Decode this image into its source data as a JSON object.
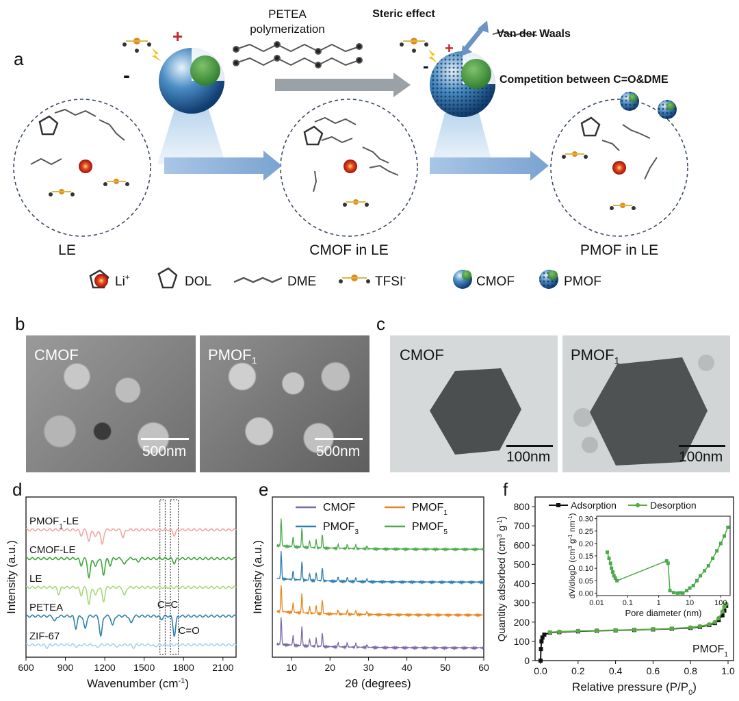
{
  "panel_a": {
    "letter": "a",
    "top_caption": [
      "PETEA",
      "polymerization"
    ],
    "steric_label": "Steric effect",
    "vdw_label": "Van der Waals",
    "competition_label": "Competition between C=O&DME",
    "circle_labels": [
      "LE",
      "CMOF in LE",
      "PMOF in LE"
    ],
    "charge_plus": "+",
    "charge_minus": "-",
    "legend": [
      {
        "icon": "li-ion-icon",
        "label": "Li",
        "sup": "+"
      },
      {
        "icon": "dol-molecule-icon",
        "label": "DOL",
        "sup": ""
      },
      {
        "icon": "dme-molecule-icon",
        "label": "DME",
        "sup": ""
      },
      {
        "icon": "tfsi-molecule-icon",
        "label": "TFSI",
        "sup": "-"
      },
      {
        "icon": "cmof-sphere-icon",
        "label": "CMOF",
        "sup": ""
      },
      {
        "icon": "pmof-sphere-icon",
        "label": "PMOF",
        "sup": ""
      }
    ]
  },
  "panel_b": {
    "letter": "b",
    "images": [
      {
        "label": "CMOF",
        "sub": "",
        "scale": "500nm"
      },
      {
        "label": "PMOF",
        "sub": "1",
        "scale": "500nm"
      }
    ]
  },
  "panel_c": {
    "letter": "c",
    "images": [
      {
        "label": "CMOF",
        "sub": "",
        "scale": "100nm"
      },
      {
        "label": "PMOF",
        "sub": "1",
        "scale": "100nm"
      }
    ]
  },
  "chart_data": [
    {
      "panel": "d",
      "type": "line",
      "xlabel": "Wavenumber (cm",
      "xlabel_sup": "-1",
      "xlabel_end": ")",
      "ylabel": "Intensity (a.u.)",
      "xlim": [
        600,
        2200
      ],
      "xticks": [
        600,
        900,
        1200,
        1500,
        1800,
        2100
      ],
      "series": [
        {
          "name": "PMOF",
          "sub": "1",
          "name_end": "-LE",
          "color": "#f2a6a2",
          "offset": 4.0,
          "dips": [
            [
              1020,
              0.25
            ],
            [
              1080,
              0.55
            ],
            [
              1130,
              0.35
            ],
            [
              1180,
              0.7
            ],
            [
              1340,
              0.35
            ],
            [
              1730,
              0.25
            ]
          ]
        },
        {
          "name": "CMOF-LE",
          "sub": "",
          "name_end": "",
          "color": "#3aa53a",
          "offset": 3.0,
          "dips": [
            [
              1020,
              0.3
            ],
            [
              1080,
              0.9
            ],
            [
              1130,
              0.4
            ],
            [
              1190,
              0.75
            ],
            [
              1240,
              0.3
            ],
            [
              1350,
              0.3
            ],
            [
              1450,
              0.15
            ],
            [
              1730,
              0.2
            ]
          ]
        },
        {
          "name": "LE",
          "sub": "",
          "name_end": "",
          "color": "#a8d77a",
          "offset": 2.0,
          "dips": [
            [
              850,
              0.3
            ],
            [
              1020,
              0.35
            ],
            [
              1080,
              0.8
            ],
            [
              1130,
              0.4
            ],
            [
              1190,
              0.65
            ],
            [
              1350,
              0.4
            ]
          ]
        },
        {
          "name": "PETEA",
          "sub": "",
          "name_end": "",
          "color": "#2e7fae",
          "offset": 1.0,
          "dips": [
            [
              820,
              0.25
            ],
            [
              980,
              0.55
            ],
            [
              1050,
              0.6
            ],
            [
              1170,
              0.95
            ],
            [
              1260,
              0.45
            ],
            [
              1400,
              0.35
            ],
            [
              1630,
              0.15
            ],
            [
              1730,
              0.9
            ]
          ]
        },
        {
          "name": "ZIF-67",
          "sub": "",
          "name_end": "",
          "color": "#a6d3ea",
          "offset": 0.0,
          "dips": [
            [
              760,
              0.12
            ],
            [
              990,
              0.1
            ],
            [
              1140,
              0.12
            ],
            [
              1300,
              0.1
            ],
            [
              1420,
              0.12
            ],
            [
              1580,
              0.08
            ]
          ]
        }
      ],
      "annotations": [
        "C=C",
        "C=O"
      ],
      "highlight_bands": [
        [
          1620,
          1660
        ],
        [
          1700,
          1760
        ]
      ]
    },
    {
      "panel": "e",
      "type": "line",
      "xlabel": "2θ (degrees)",
      "ylabel": "Intensity (a.u.)",
      "xlim": [
        5,
        60
      ],
      "xticks": [
        10,
        20,
        30,
        40,
        50,
        60
      ],
      "series": [
        {
          "name": "CMOF",
          "sub": "",
          "color": "#7b68a8",
          "offset": 0
        },
        {
          "name": "PMOF",
          "sub": "1",
          "color": "#e8861c",
          "offset": 1
        },
        {
          "name": "PMOF",
          "sub": "3",
          "color": "#2e7fae",
          "offset": 2
        },
        {
          "name": "PMOF",
          "sub": "5",
          "color": "#4aaa4a",
          "offset": 3
        }
      ],
      "peaks": [
        [
          7.3,
          1.0
        ],
        [
          10.4,
          0.35
        ],
        [
          12.7,
          0.7
        ],
        [
          14.7,
          0.25
        ],
        [
          16.4,
          0.3
        ],
        [
          18.0,
          0.5
        ],
        [
          22.1,
          0.15
        ],
        [
          24.5,
          0.15
        ],
        [
          26.7,
          0.15
        ],
        [
          29.6,
          0.1
        ]
      ]
    },
    {
      "panel": "f",
      "type": "line",
      "xlabel": "Relative pressure (P/P",
      "xlabel_sub": "0",
      "xlabel_end": ")",
      "ylabel": "Quantity adsorbed (cm",
      "ylabel_sup": "3",
      "ylabel_mid": " g",
      "ylabel_sup2": "-1",
      "ylabel_end": ")",
      "xlim": [
        0,
        1.0
      ],
      "ylim": [
        0,
        850
      ],
      "xticks": [
        0.0,
        0.2,
        0.4,
        0.6,
        0.8,
        1.0
      ],
      "yticks": [
        0,
        100,
        200,
        300,
        400,
        500,
        600,
        700,
        800
      ],
      "sample_label": "PMOF",
      "sample_sub": "1",
      "series": [
        {
          "name": "Adsorption",
          "color": "#111111",
          "marker": "square",
          "x": [
            0.0,
            0.002,
            0.005,
            0.01,
            0.02,
            0.05,
            0.1,
            0.2,
            0.3,
            0.4,
            0.5,
            0.6,
            0.7,
            0.8,
            0.85,
            0.9,
            0.93,
            0.95,
            0.97,
            0.98,
            0.99
          ],
          "y": [
            0,
            60,
            100,
            120,
            135,
            145,
            148,
            152,
            155,
            157,
            159,
            162,
            165,
            170,
            175,
            185,
            195,
            210,
            235,
            260,
            285
          ]
        },
        {
          "name": "Desorption",
          "color": "#5aaa45",
          "marker": "circle",
          "x": [
            0.99,
            0.98,
            0.97,
            0.95,
            0.93,
            0.9,
            0.85,
            0.8,
            0.7,
            0.6,
            0.5,
            0.4,
            0.3,
            0.2,
            0.1,
            0.05
          ],
          "y": [
            295,
            280,
            255,
            220,
            200,
            188,
            178,
            172,
            166,
            163,
            160,
            158,
            156,
            154,
            150,
            147
          ]
        }
      ],
      "inset": {
        "xlabel": "Pore diameter (nm)",
        "ylabel": "dV/dlogD (cm",
        "ylabel_sup": "3",
        "ylabel_mid": " g",
        "ylabel_sup2": "-1",
        "ylabel_mid2": " nm",
        "ylabel_sup3": "-1",
        "ylabel_end": ")",
        "xscale": "log",
        "xlim": [
          0.01,
          200
        ],
        "ylim": [
          -0.01,
          0.31
        ],
        "xticks": [
          "0.01",
          "0.1",
          "1",
          "10",
          "100"
        ],
        "yticks": [
          "0.00",
          "0.05",
          "0.10",
          "0.15",
          "0.20",
          "0.25",
          "0.30"
        ],
        "x": [
          0.022,
          0.025,
          0.028,
          0.03,
          0.033,
          0.036,
          0.04,
          0.045,
          1.8,
          2.0,
          2.3,
          3.0,
          4.0,
          5.0,
          6.0,
          8.0,
          10,
          13,
          17,
          22,
          30,
          40,
          55,
          75,
          100,
          130,
          170
        ],
        "y": [
          0.165,
          0.14,
          0.12,
          0.1,
          0.085,
          0.07,
          0.06,
          0.05,
          0.13,
          0.12,
          0.01,
          0.002,
          0.0,
          0.001,
          0.0,
          0.01,
          0.02,
          0.03,
          0.05,
          0.07,
          0.09,
          0.11,
          0.14,
          0.17,
          0.2,
          0.23,
          0.265
        ]
      }
    }
  ]
}
